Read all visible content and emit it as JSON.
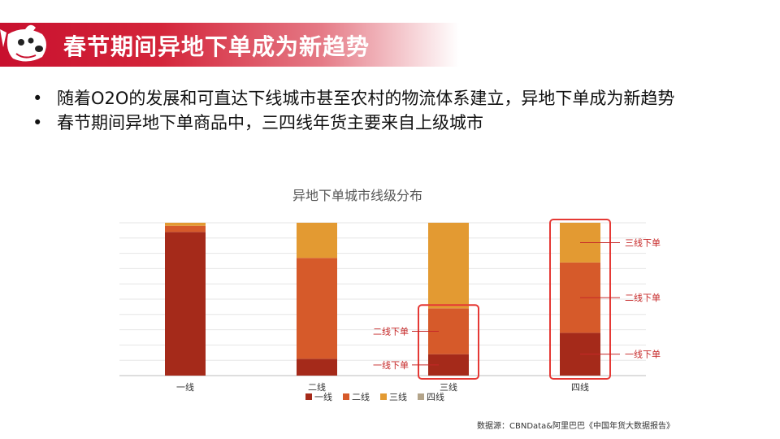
{
  "slide": {
    "title": "春节期间异地下单成为新趋势",
    "bullets": [
      "随着O2O的发展和可直达下线城市甚至农村的物流体系建立，异地下单成为新趋势",
      "春节期间异地下单商品中，三四线年货主要来自上级城市"
    ],
    "source": "数据源：CBNData&阿里巴巴《中国年货大数据报告》"
  },
  "colors": {
    "brand_red": "#c8102e",
    "series": [
      "#a52a1a",
      "#d65a2a",
      "#e39a32",
      "#b3a48a"
    ],
    "highlight": "#e53935",
    "annotation_text": "#c62828"
  },
  "chart_data": {
    "type": "bar",
    "stacked": true,
    "percent": true,
    "title": "异地下单城市线级分布",
    "categories": [
      "一线",
      "二线",
      "三线",
      "四线"
    ],
    "series": [
      {
        "name": "一线",
        "values": [
          94,
          11,
          14,
          28
        ]
      },
      {
        "name": "二线",
        "values": [
          4,
          66,
          30,
          46
        ]
      },
      {
        "name": "三线",
        "values": [
          2,
          23,
          56,
          26
        ]
      },
      {
        "name": "四线",
        "values": [
          0,
          0,
          0,
          0
        ]
      }
    ],
    "ylim": [
      0,
      100
    ],
    "grid": true,
    "legend": "bottom",
    "annotations": [
      {
        "category": "三线",
        "labels": [
          "二线下单",
          "一线下单"
        ]
      },
      {
        "category": "四线",
        "labels": [
          "三线下单",
          "二线下单",
          "一线下单"
        ]
      }
    ]
  }
}
